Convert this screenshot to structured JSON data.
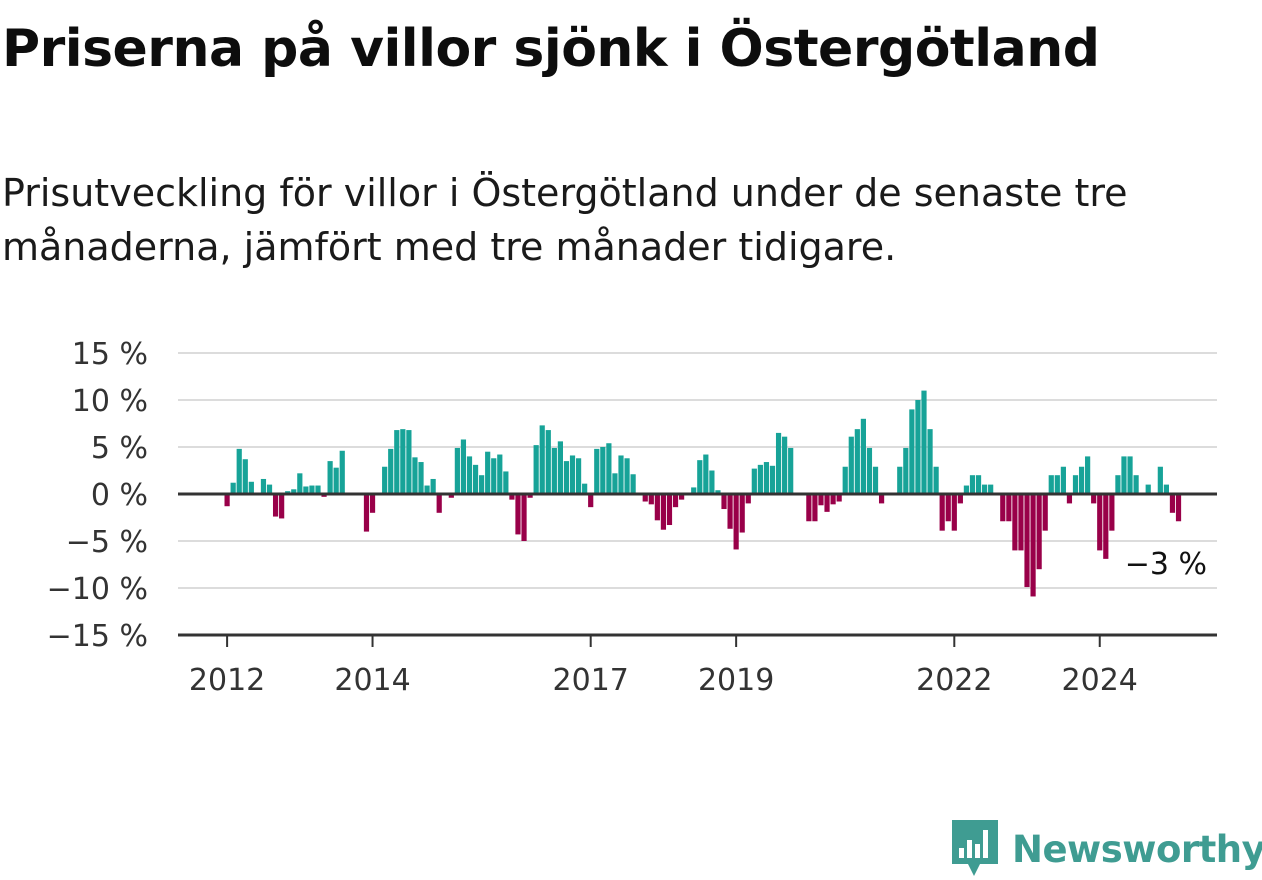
{
  "title": "Priserna på villor sjönk i Östergötland",
  "subtitle": "Prisutveckling för villor i Östergötland under de senaste tre månaderna, jämfört med tre månader tidigare.",
  "brand": {
    "name": "Newsworthy"
  },
  "colors": {
    "positive": "#17a398",
    "negative": "#990049",
    "axis": "#333333",
    "grid": "#dcdcdc",
    "brand": "#3f9c92"
  },
  "chart_data": {
    "type": "bar",
    "title": "Priserna på villor sjönk i Östergötland",
    "xlabel": "",
    "ylabel": "",
    "ylim": [
      -15,
      15
    ],
    "grid": true,
    "y_ticks": [
      15,
      10,
      5,
      0,
      -5,
      -10,
      -15
    ],
    "y_tick_labels": [
      "15 %",
      "10 %",
      "5 %",
      "0 %",
      "−5 %",
      "−10 %",
      "−15 %"
    ],
    "x_ticks": [
      "2012",
      "2014",
      "2017",
      "2019",
      "2022",
      "2024"
    ],
    "start_month": "2012-01",
    "values": [
      -1.3,
      1.2,
      4.8,
      3.7,
      1.3,
      0,
      1.6,
      1.0,
      -2.4,
      -2.6,
      0.3,
      0.5,
      2.2,
      0.8,
      0.9,
      0.9,
      -0.3,
      3.5,
      2.8,
      4.6,
      0,
      0,
      0,
      -4.0,
      -2.0,
      0,
      2.9,
      4.8,
      6.8,
      6.9,
      6.8,
      3.9,
      3.4,
      0.9,
      1.6,
      -2.0,
      0,
      -0.4,
      4.9,
      5.8,
      4.0,
      3.1,
      2.0,
      4.5,
      3.8,
      4.2,
      2.4,
      -0.6,
      -4.3,
      -5.0,
      -0.4,
      5.2,
      7.3,
      6.8,
      4.9,
      5.6,
      3.5,
      4.1,
      3.8,
      1.1,
      -1.4,
      4.8,
      5.0,
      5.4,
      2.2,
      4.1,
      3.8,
      2.1,
      0,
      -0.8,
      -1.1,
      -2.8,
      -3.8,
      -3.3,
      -1.4,
      -0.6,
      0,
      0.7,
      3.6,
      4.2,
      2.5,
      0.4,
      -1.6,
      -3.7,
      -5.9,
      -4.1,
      -1.0,
      2.7,
      3.1,
      3.4,
      3.0,
      6.5,
      6.1,
      4.9,
      0,
      0,
      -2.9,
      -2.9,
      -1.2,
      -1.9,
      -1.1,
      -0.8,
      2.9,
      6.1,
      6.9,
      8.0,
      4.9,
      2.9,
      -1.0,
      0,
      0,
      2.9,
      4.9,
      9.0,
      10.0,
      11.0,
      6.9,
      2.9,
      -3.9,
      -2.9,
      -3.9,
      -1.0,
      0.9,
      2.0,
      2.0,
      1.0,
      1.0,
      0,
      -2.9,
      -2.9,
      -6.0,
      -6.0,
      -9.9,
      -10.9,
      -8.0,
      -3.9,
      2.0,
      2.0,
      2.9,
      -1.0,
      2.0,
      2.9,
      4.0,
      -1.0,
      -6.0,
      -6.9,
      -3.9,
      2.0,
      4.0,
      4.0,
      2.0,
      0,
      1.0,
      0,
      2.9,
      1.0,
      -2.0,
      -2.9
    ],
    "annotation": {
      "text": "−3 %",
      "value": -3
    }
  }
}
